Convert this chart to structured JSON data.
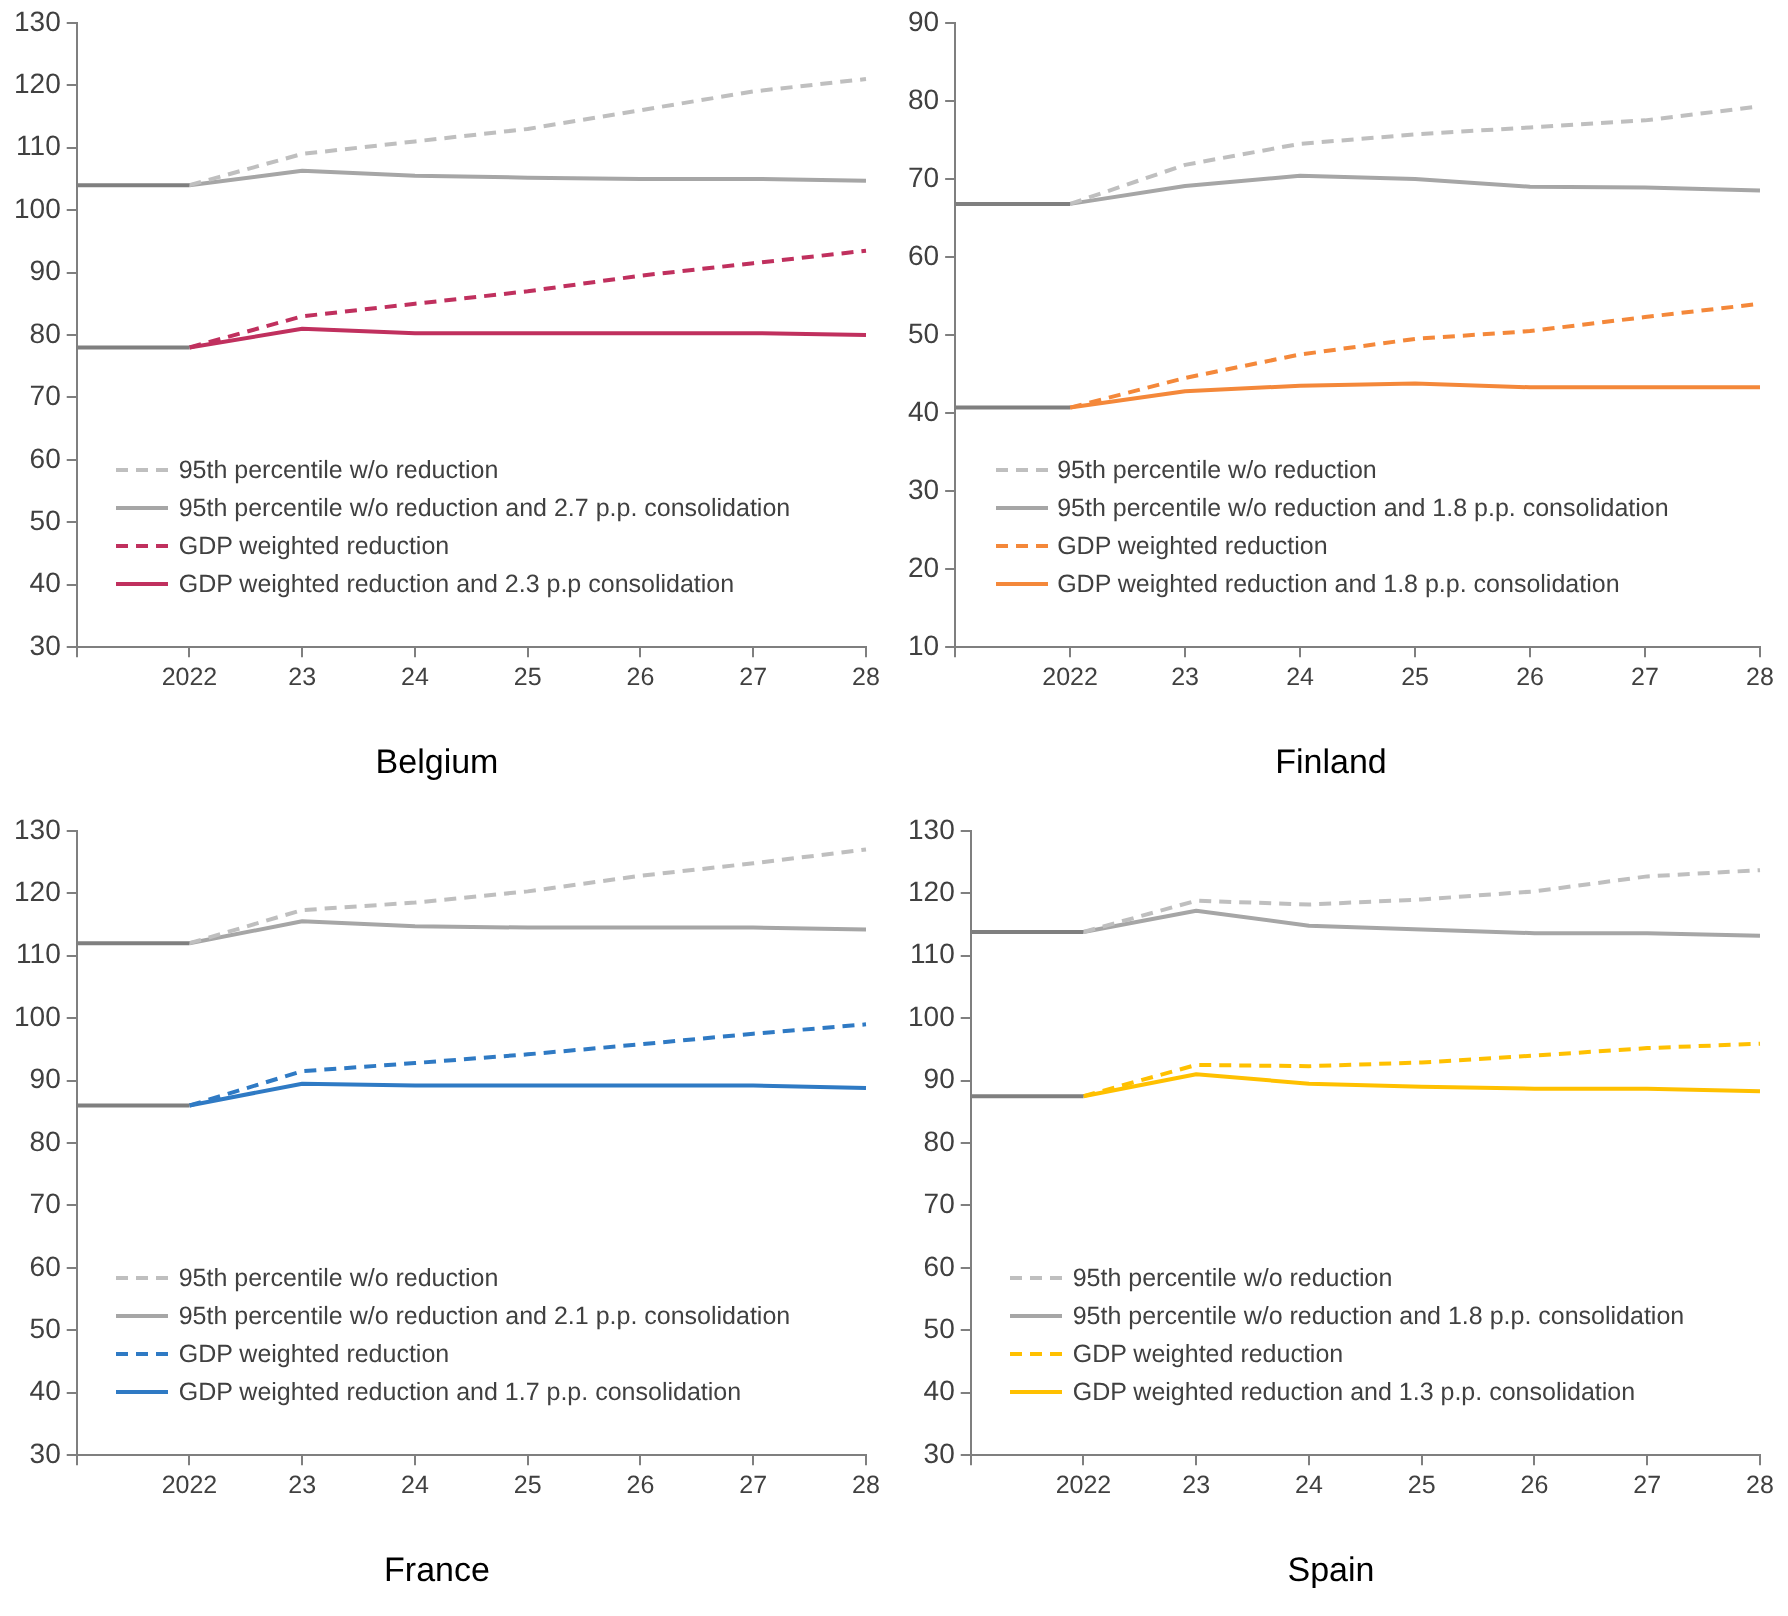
{
  "chart_data": [
    {
      "type": "line",
      "title": "Belgium",
      "categories": [
        null,
        "2022",
        "23",
        "24",
        "25",
        "26",
        "27",
        "28"
      ],
      "ylim": [
        30,
        130
      ],
      "yticks": [
        30,
        40,
        50,
        60,
        70,
        80,
        90,
        100,
        110,
        120,
        130
      ],
      "grid": false,
      "legend": "bottom left",
      "series": [
        {
          "color": "#7f7f7f",
          "line_style": "solid",
          "values": [
            104,
            104,
            null,
            null,
            null,
            null,
            null,
            null
          ]
        },
        {
          "color": "#7f7f7f",
          "line_style": "solid",
          "values": [
            78,
            78,
            null,
            null,
            null,
            null,
            null,
            null
          ]
        },
        {
          "name": "95th percentile w/o reduction",
          "color": "#bfbfbf",
          "line_style": "dashed",
          "values": [
            null,
            104,
            109,
            111,
            113,
            116,
            119,
            121
          ]
        },
        {
          "name": "95th percentile w/o reduction and 2.7 p.p. consolidation",
          "color": "#a6a6a6",
          "line_style": "solid",
          "values": [
            null,
            104,
            106.3,
            105.5,
            105.2,
            105,
            105,
            104.7
          ]
        },
        {
          "name": "GDP weighted reduction",
          "color": "#c0305e",
          "line_style": "dashed",
          "values": [
            null,
            78,
            83,
            85,
            87,
            89.5,
            91.5,
            93.5
          ]
        },
        {
          "name": "GDP weighted reduction and 2.3 p.p consolidation",
          "color": "#c0305e",
          "line_style": "solid",
          "values": [
            null,
            78,
            81,
            80.3,
            80.3,
            80.3,
            80.3,
            80
          ]
        }
      ]
    },
    {
      "type": "line",
      "title": "Finland",
      "categories": [
        null,
        "2022",
        "23",
        "24",
        "25",
        "26",
        "27",
        "28"
      ],
      "ylim": [
        10,
        90
      ],
      "yticks": [
        10,
        20,
        30,
        40,
        50,
        60,
        70,
        80,
        90
      ],
      "grid": false,
      "legend": "bottom left",
      "series": [
        {
          "color": "#7f7f7f",
          "line_style": "solid",
          "values": [
            66.8,
            66.8,
            null,
            null,
            null,
            null,
            null,
            null
          ]
        },
        {
          "color": "#7f7f7f",
          "line_style": "solid",
          "values": [
            40.7,
            40.7,
            null,
            null,
            null,
            null,
            null,
            null
          ]
        },
        {
          "name": "95th percentile w/o reduction",
          "color": "#bfbfbf",
          "line_style": "dashed",
          "values": [
            null,
            66.8,
            71.8,
            74.5,
            75.7,
            76.6,
            77.5,
            79.3
          ]
        },
        {
          "name": "95th percentile w/o reduction and 1.8 p.p. consolidation",
          "color": "#a6a6a6",
          "line_style": "solid",
          "values": [
            null,
            66.8,
            69.1,
            70.4,
            70,
            69,
            68.9,
            68.5
          ]
        },
        {
          "name": "GDP weighted reduction",
          "color": "#f4883a",
          "line_style": "dashed",
          "values": [
            null,
            40.7,
            44.5,
            47.5,
            49.5,
            50.5,
            52.3,
            54
          ]
        },
        {
          "name": "GDP weighted reduction and 1.8 p.p. consolidation",
          "color": "#f4883a",
          "line_style": "solid",
          "values": [
            null,
            40.7,
            42.8,
            43.5,
            43.8,
            43.3,
            43.3,
            43.3
          ]
        }
      ]
    },
    {
      "type": "line",
      "title": "France",
      "categories": [
        null,
        "2022",
        "23",
        "24",
        "25",
        "26",
        "27",
        "28"
      ],
      "ylim": [
        30,
        130
      ],
      "yticks": [
        30,
        40,
        50,
        60,
        70,
        80,
        90,
        100,
        110,
        120,
        130
      ],
      "grid": false,
      "legend": "bottom left",
      "series": [
        {
          "color": "#7f7f7f",
          "line_style": "solid",
          "values": [
            112,
            112,
            null,
            null,
            null,
            null,
            null,
            null
          ]
        },
        {
          "color": "#7f7f7f",
          "line_style": "solid",
          "values": [
            86,
            86,
            null,
            null,
            null,
            null,
            null,
            null
          ]
        },
        {
          "name": "95th percentile w/o reduction",
          "color": "#bfbfbf",
          "line_style": "dashed",
          "values": [
            null,
            112,
            117.3,
            118.5,
            120.3,
            122.8,
            124.8,
            127
          ]
        },
        {
          "name": "95th percentile w/o reduction and 2.1 p.p. consolidation",
          "color": "#a6a6a6",
          "line_style": "solid",
          "values": [
            null,
            112,
            115.5,
            114.7,
            114.5,
            114.5,
            114.5,
            114.2
          ]
        },
        {
          "name": "GDP weighted reduction",
          "color": "#2f7ac4",
          "line_style": "dashed",
          "values": [
            null,
            86,
            91.5,
            92.8,
            94.2,
            95.8,
            97.5,
            99
          ]
        },
        {
          "name": "GDP weighted reduction and 1.7 p.p. consolidation",
          "color": "#2f7ac4",
          "line_style": "solid",
          "values": [
            null,
            86,
            89.5,
            89.2,
            89.2,
            89.2,
            89.2,
            88.8
          ]
        }
      ]
    },
    {
      "type": "line",
      "title": "Spain",
      "categories": [
        null,
        "2022",
        "23",
        "24",
        "25",
        "26",
        "27",
        "28"
      ],
      "ylim": [
        30,
        130
      ],
      "yticks": [
        30,
        40,
        50,
        60,
        70,
        80,
        90,
        100,
        110,
        120,
        130
      ],
      "grid": false,
      "legend": "bottom left",
      "series": [
        {
          "color": "#7f7f7f",
          "line_style": "solid",
          "values": [
            113.8,
            113.8,
            null,
            null,
            null,
            null,
            null,
            null
          ]
        },
        {
          "color": "#7f7f7f",
          "line_style": "solid",
          "values": [
            87.5,
            87.5,
            null,
            null,
            null,
            null,
            null,
            null
          ]
        },
        {
          "name": "95th percentile w/o reduction",
          "color": "#bfbfbf",
          "line_style": "dashed",
          "values": [
            null,
            113.8,
            118.8,
            118.2,
            119,
            120.3,
            122.7,
            123.7
          ]
        },
        {
          "name": "95th percentile w/o reduction and 1.8 p.p. consolidation",
          "color": "#a6a6a6",
          "line_style": "solid",
          "values": [
            null,
            113.8,
            117.2,
            114.8,
            114.2,
            113.6,
            113.6,
            113.2
          ]
        },
        {
          "name": "GDP weighted reduction",
          "color": "#ffc000",
          "line_style": "dashed",
          "values": [
            null,
            87.5,
            92.5,
            92.3,
            92.9,
            94,
            95.2,
            95.9
          ]
        },
        {
          "name": "GDP weighted reduction and 1.3 p.p. consolidation",
          "color": "#ffc000",
          "line_style": "solid",
          "values": [
            null,
            87.5,
            91,
            89.5,
            89,
            88.7,
            88.7,
            88.3
          ]
        }
      ]
    }
  ]
}
